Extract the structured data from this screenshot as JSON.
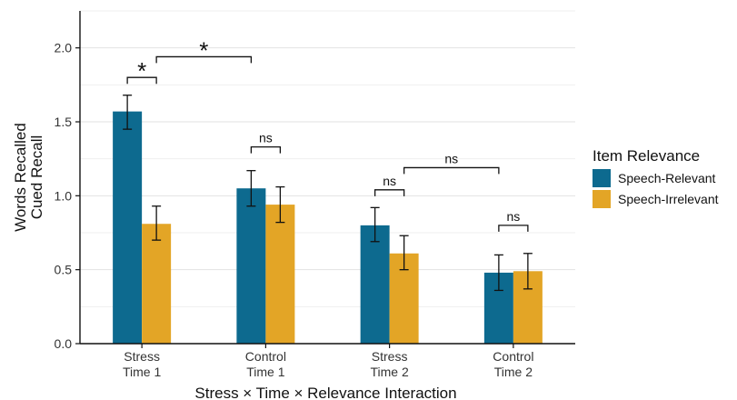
{
  "chart_data": {
    "type": "bar",
    "title": "",
    "xlabel": "Stress × Time × Relevance Interaction",
    "ylabel_lines": [
      "Words Recalled",
      "Cued Recall"
    ],
    "ylim": [
      0,
      2.25
    ],
    "yticks": [
      0.0,
      0.5,
      1.0,
      1.5,
      2.0
    ],
    "ytick_labels": [
      "0.0",
      "0.5",
      "1.0",
      "1.5",
      "2.0"
    ],
    "grid": true,
    "categories": [
      [
        "Stress",
        "Time 1"
      ],
      [
        "Control",
        "Time 1"
      ],
      [
        "Stress",
        "Time 2"
      ],
      [
        "Control",
        "Time 2"
      ]
    ],
    "series": [
      {
        "name": "Speech-Relevant",
        "color": "#0d6a8f",
        "values": [
          1.57,
          1.05,
          0.8,
          0.48
        ],
        "err_low": [
          1.45,
          0.93,
          0.69,
          0.36
        ],
        "err_high": [
          1.68,
          1.17,
          0.92,
          0.6
        ]
      },
      {
        "name": "Speech-Irrelevant",
        "color": "#e3a526",
        "values": [
          0.81,
          0.94,
          0.61,
          0.49
        ],
        "err_low": [
          0.7,
          0.82,
          0.5,
          0.37
        ],
        "err_high": [
          0.93,
          1.06,
          0.73,
          0.61
        ]
      }
    ],
    "legend": {
      "title": "Item Relevance",
      "position": "right"
    },
    "comparisons": [
      {
        "label": "*",
        "from": [
          0,
          0
        ],
        "to": [
          0,
          1
        ],
        "level": 1.8
      },
      {
        "label": "*",
        "from": [
          0,
          1
        ],
        "to": [
          1,
          0
        ],
        "level": 1.94
      },
      {
        "label": "ns",
        "from": [
          1,
          0
        ],
        "to": [
          1,
          1
        ],
        "level": 1.33
      },
      {
        "label": "ns",
        "from": [
          2,
          0
        ],
        "to": [
          2,
          1
        ],
        "level": 1.04
      },
      {
        "label": "ns",
        "from": [
          2,
          1
        ],
        "to": [
          3,
          0
        ],
        "level": 1.19
      },
      {
        "label": "ns",
        "from": [
          3,
          0
        ],
        "to": [
          3,
          1
        ],
        "level": 0.8
      }
    ]
  }
}
